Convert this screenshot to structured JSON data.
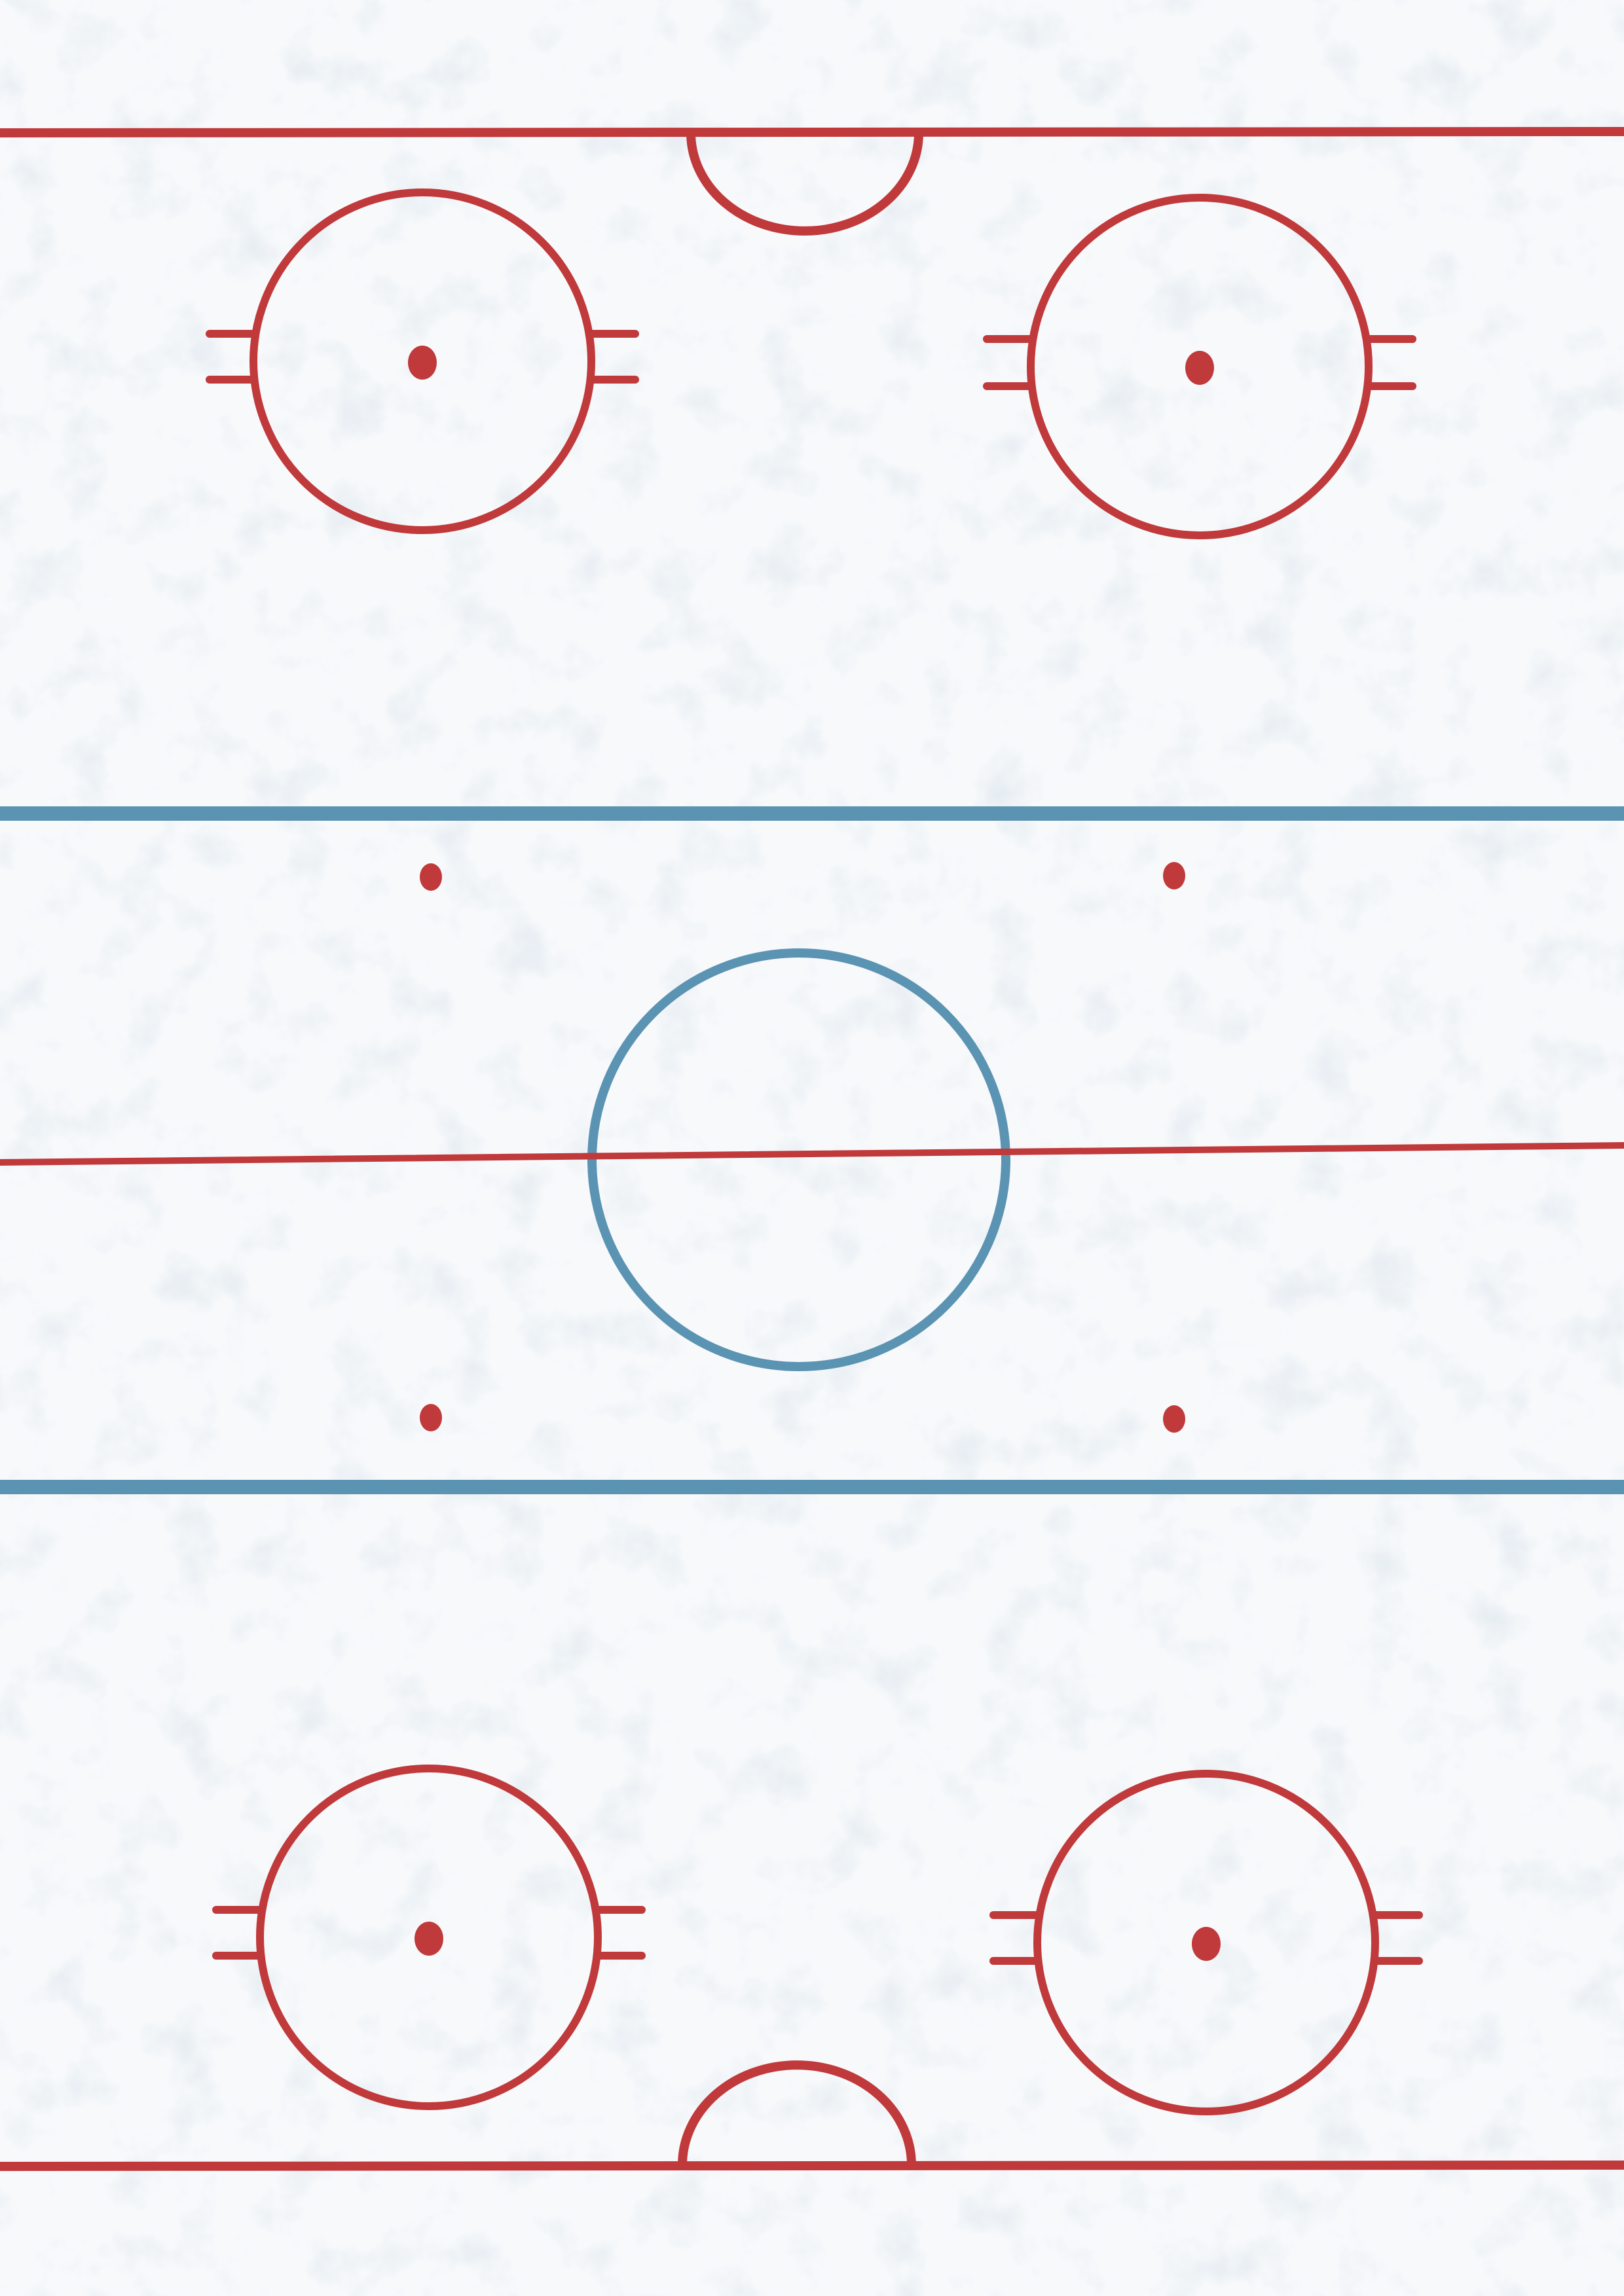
{
  "rink": {
    "colors": {
      "ice": "#f7f9fb",
      "ice_speckle": "#c9d6e2",
      "red_line": "#c0393b",
      "blue_line": "#5b93b3"
    },
    "elements": {
      "goal_lines": 2,
      "goal_creases": 2,
      "faceoff_circles": 4,
      "neutral_zone_dots": 4,
      "blue_lines": 2,
      "center_line": 1,
      "center_circle": 1
    }
  }
}
